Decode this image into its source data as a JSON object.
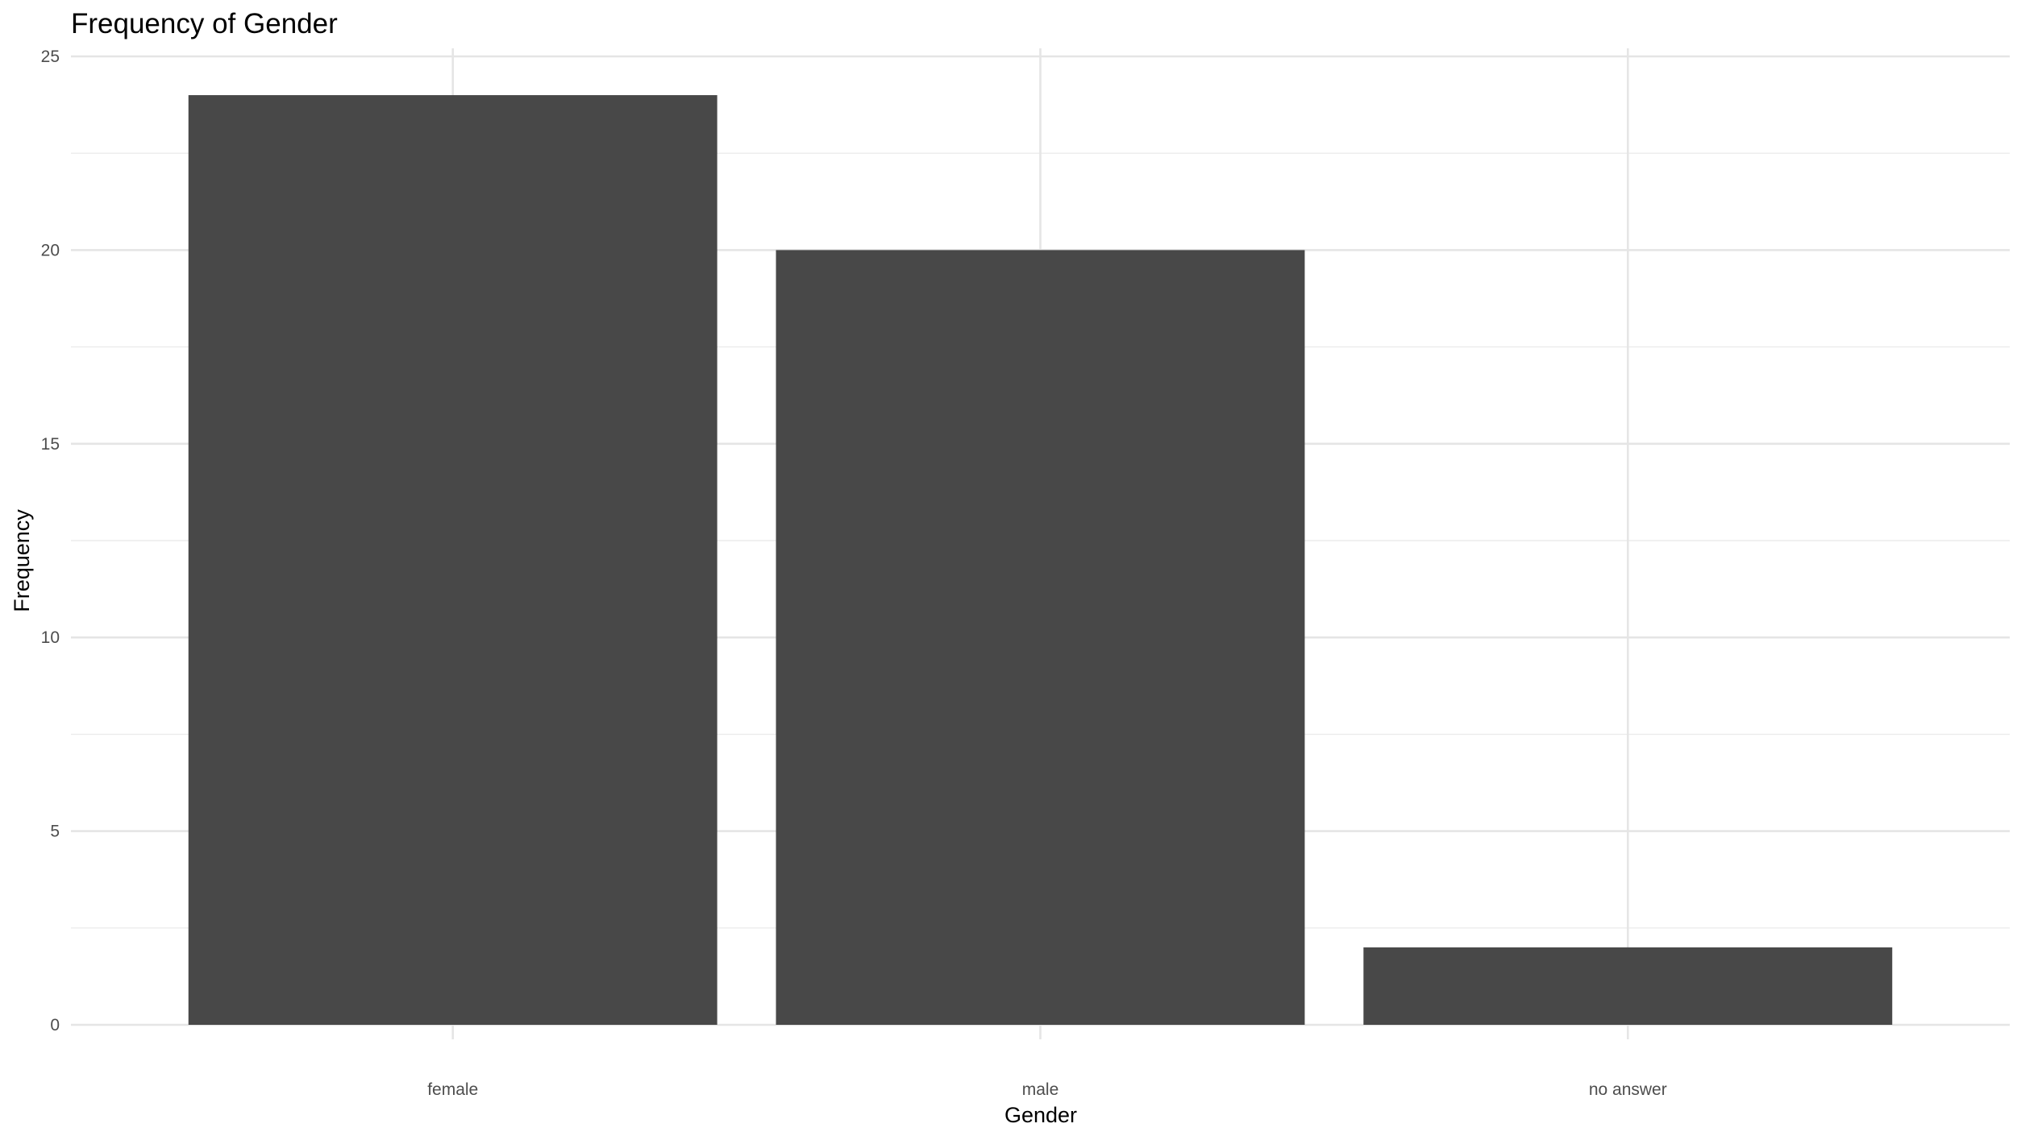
{
  "chart_data": {
    "type": "bar",
    "title": "Frequency of Gender",
    "xlabel": "Gender",
    "ylabel": "Frequency",
    "categories": [
      "female",
      "male",
      "no answer"
    ],
    "values": [
      24,
      20,
      2
    ],
    "ylim": [
      0,
      25
    ],
    "yticks": [
      0,
      5,
      10,
      15,
      20,
      25
    ],
    "grid": true,
    "legend": "none",
    "bar_color": "#484848"
  }
}
